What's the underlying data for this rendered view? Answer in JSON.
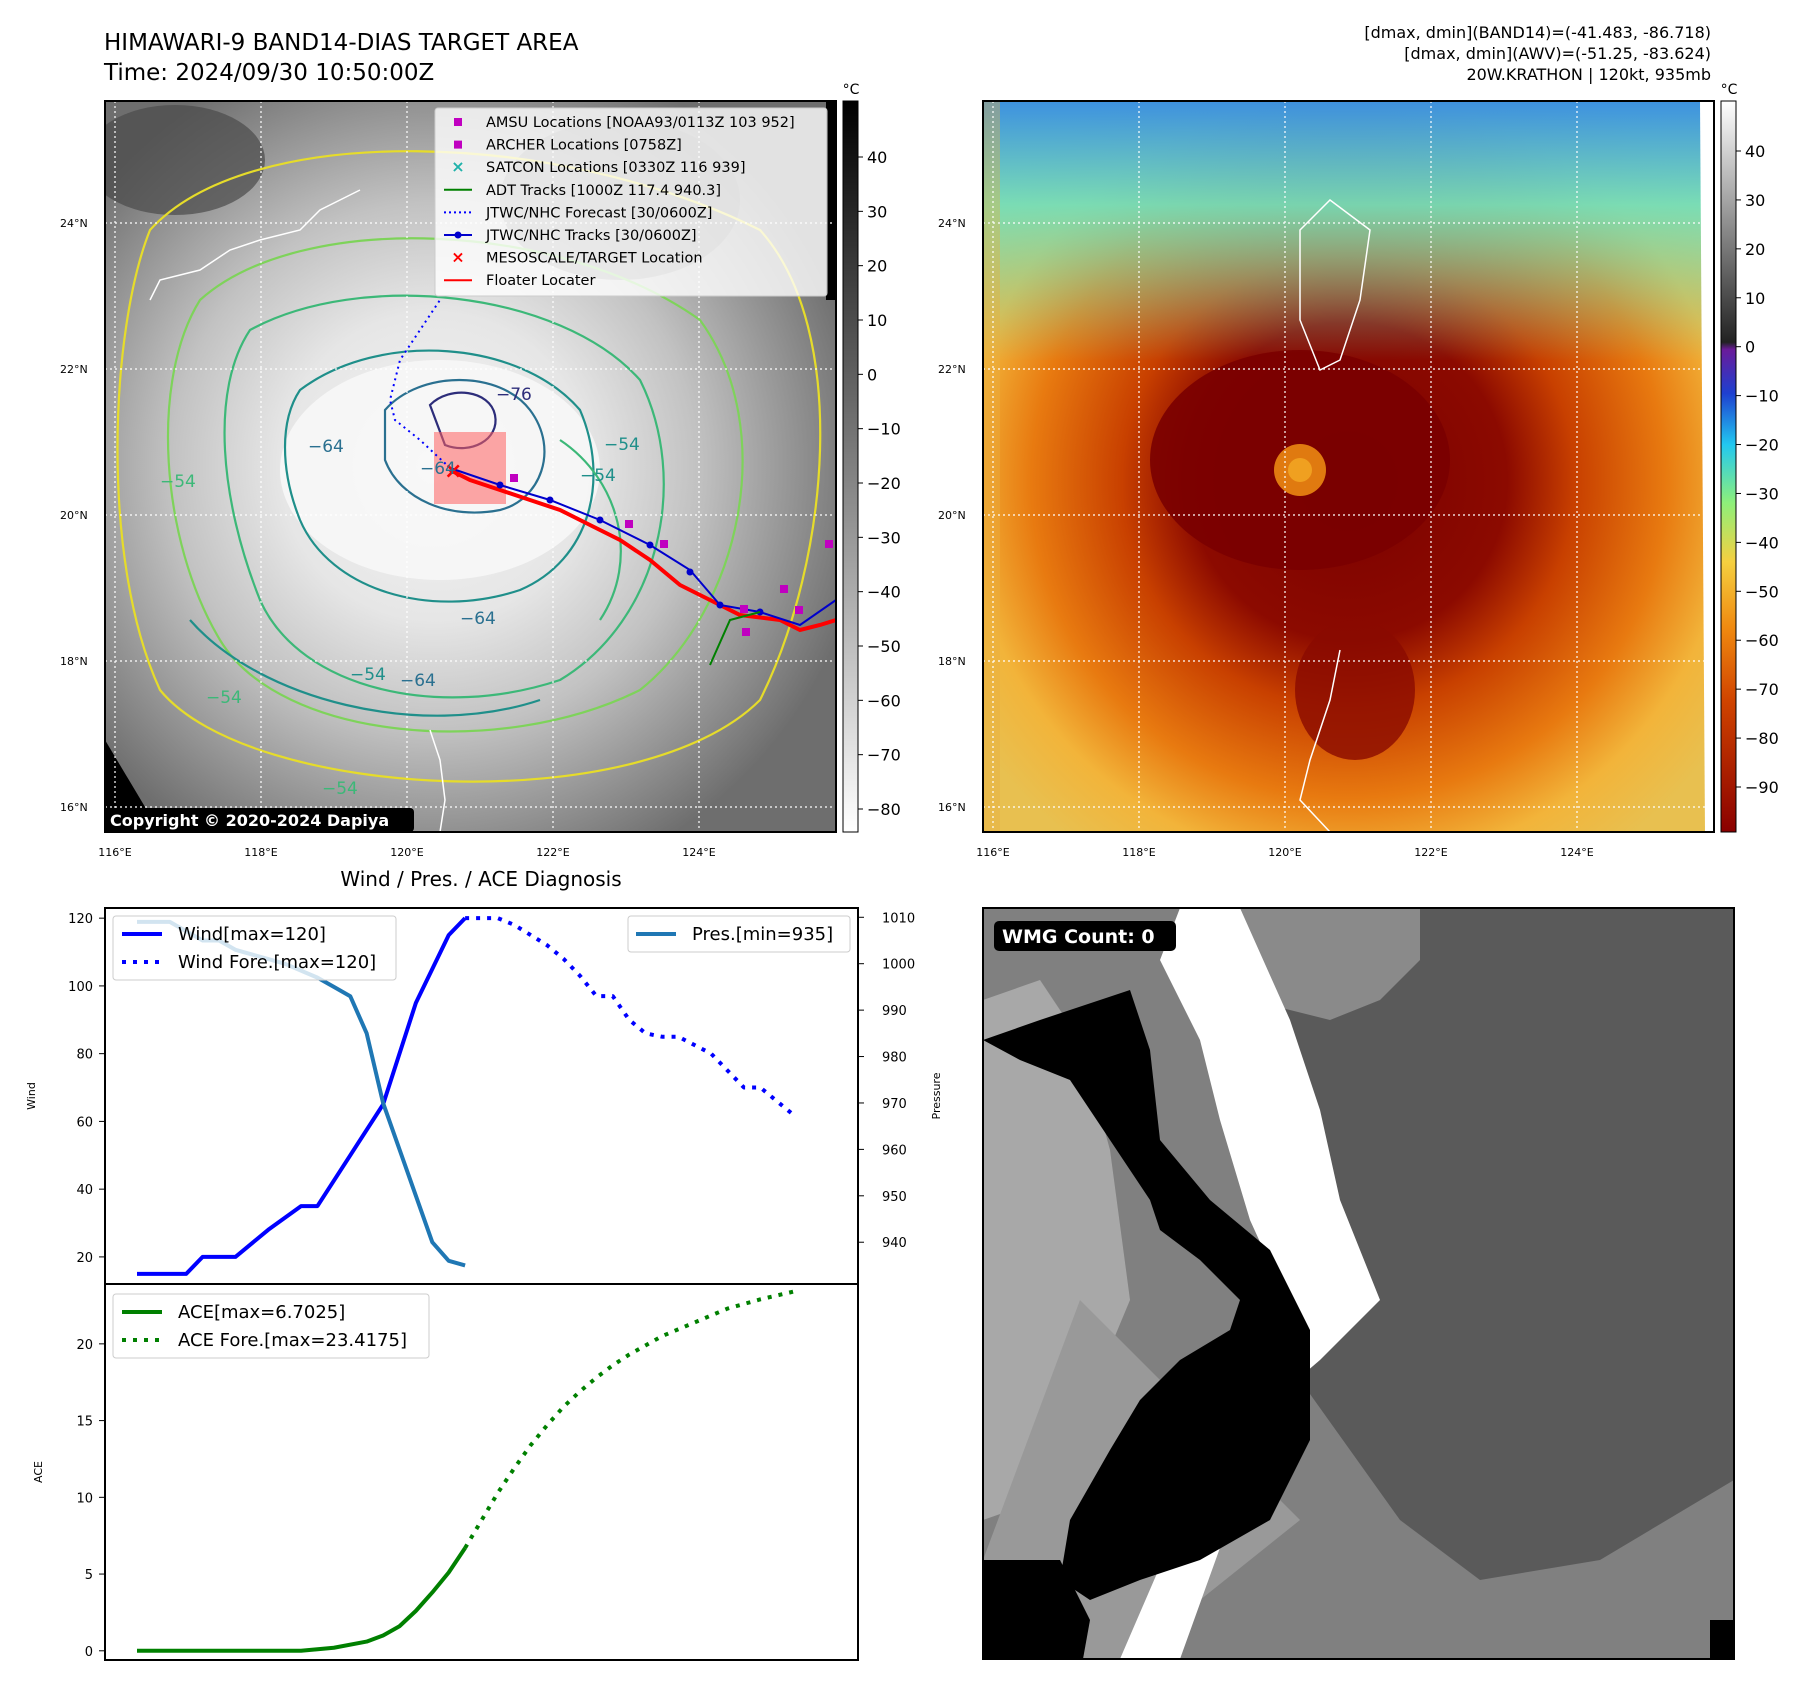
{
  "header": {
    "title": "HIMAWARI-9 BAND14-DIAS TARGET AREA",
    "time": "Time: 2024/09/30 10:50:00Z",
    "stats_band14": "[dmax, dmin](BAND14)=(-41.483, -86.718)",
    "stats_awv": "[dmax, dmin](AWV)=(-51.25, -83.624)",
    "storm": "20W.KRATHON | 120kt, 935mb"
  },
  "maps": {
    "lat_labels": [
      "24°N",
      "22°N",
      "20°N",
      "18°N",
      "16°N"
    ],
    "lon_labels": [
      "116°E",
      "118°E",
      "120°E",
      "122°E",
      "124°E"
    ],
    "copyright": "Copyright © 2020-2024 Dapiya",
    "contour_labels": [
      "−76",
      "−64",
      "−54",
      "−54",
      "−64",
      "−54",
      "−54",
      "−54",
      "−64",
      "−64",
      "−54"
    ],
    "legend": [
      {
        "label": "AMSU Locations [NOAA93/0113Z 103 952]",
        "marker": "square",
        "color": "#c000c0"
      },
      {
        "label": "ARCHER Locations [0758Z]",
        "marker": "square",
        "color": "#c000c0"
      },
      {
        "label": "SATCON Locations [0330Z 116 939]",
        "marker": "x",
        "color": "#20b2aa"
      },
      {
        "label": "ADT Tracks [1000Z 117.4 940.3]",
        "marker": "line",
        "color": "#008000"
      },
      {
        "label": "JTWC/NHC Forecast [30/0600Z]",
        "marker": "dotted",
        "color": "#0000ff"
      },
      {
        "label": "JTWC/NHC Tracks [30/0600Z]",
        "marker": "line-dot",
        "color": "#0000cc"
      },
      {
        "label": "MESOSCALE/TARGET Location",
        "marker": "x",
        "color": "#ff0000"
      },
      {
        "label": "Floater Locater",
        "marker": "line",
        "color": "#ff0000"
      }
    ],
    "gray_colorbar": {
      "unit": "°C",
      "ticks": [
        "40",
        "30",
        "20",
        "10",
        "0",
        "−10",
        "−20",
        "−30",
        "−40",
        "−50",
        "−60",
        "−70",
        "−80"
      ]
    },
    "color_colorbar": {
      "unit": "°C",
      "ticks": [
        "40",
        "30",
        "20",
        "10",
        "0",
        "−10",
        "−20",
        "−30",
        "−40",
        "−50",
        "−60",
        "−70",
        "−80",
        "−90"
      ]
    }
  },
  "wmg": {
    "label": "WMG Count: 0"
  },
  "chart_data": [
    {
      "type": "line",
      "title": "Wind / Pres. / ACE Diagnosis",
      "ylabel": "Wind",
      "y2label": "Pressure",
      "ylim": [
        12,
        123
      ],
      "y2lim": [
        931,
        1012
      ],
      "xlim": [
        0,
        42
      ],
      "y_ticks": [
        20,
        40,
        60,
        80,
        100,
        120
      ],
      "y2_ticks": [
        940,
        950,
        960,
        970,
        980,
        990,
        1000,
        1010
      ],
      "legend_left": [
        "Wind[max=120]",
        "Wind Fore.[max=120]"
      ],
      "legend_right": [
        "Pres.[min=935]"
      ],
      "series": [
        {
          "name": "Wind[max=120]",
          "color": "#0000ff",
          "style": "solid",
          "axis": "left",
          "x": [
            0,
            3,
            4,
            6,
            8,
            10,
            11,
            13,
            15,
            17,
            18,
            19,
            20
          ],
          "y": [
            15,
            15,
            20,
            20,
            28,
            35,
            35,
            50,
            65,
            95,
            105,
            115,
            120
          ]
        },
        {
          "name": "Wind Fore.[max=120]",
          "color": "#0000ff",
          "style": "dotted",
          "axis": "left",
          "x": [
            20,
            22,
            23,
            24,
            25,
            26,
            27,
            28,
            29,
            30,
            31,
            32,
            33,
            35,
            36,
            37,
            38,
            40
          ],
          "y": [
            120,
            120,
            118,
            115,
            112,
            108,
            103,
            97,
            97,
            90,
            86,
            85,
            85,
            80,
            75,
            70,
            70,
            62
          ]
        },
        {
          "name": "Pres.[min=935]",
          "color": "#1f77b4",
          "style": "solid",
          "axis": "right",
          "x": [
            0,
            2,
            3,
            4,
            5,
            6,
            7,
            8,
            9,
            11,
            12,
            13,
            14,
            15,
            16,
            17,
            18,
            19,
            20
          ],
          "y": [
            1009,
            1009,
            1007,
            1005,
            1005,
            1003,
            1002,
            1001,
            1000,
            997,
            995,
            993,
            985,
            970,
            960,
            950,
            940,
            936,
            935
          ]
        }
      ]
    },
    {
      "type": "line",
      "ylabel": "ACE",
      "ylim": [
        -0.6,
        23.9
      ],
      "xlim": [
        0,
        42
      ],
      "y_ticks": [
        0,
        5,
        10,
        15,
        20
      ],
      "legend": [
        "ACE[max=6.7025]",
        "ACE Fore.[max=23.4175]"
      ],
      "series": [
        {
          "name": "ACE[max=6.7025]",
          "color": "#008000",
          "style": "solid",
          "x": [
            0,
            3,
            6,
            8,
            10,
            12,
            14,
            15,
            16,
            17,
            18,
            19,
            20
          ],
          "y": [
            0,
            0,
            0,
            0,
            0,
            0.2,
            0.6,
            1.0,
            1.6,
            2.6,
            3.8,
            5.1,
            6.7
          ]
        },
        {
          "name": "ACE Fore.[max=23.4175]",
          "color": "#008000",
          "style": "dotted",
          "x": [
            20,
            21,
            22,
            23,
            24,
            25,
            26,
            27,
            28,
            29,
            30,
            32,
            34,
            36,
            38,
            40
          ],
          "y": [
            6.7,
            8.5,
            10.3,
            11.9,
            13.4,
            14.7,
            15.9,
            16.9,
            17.8,
            18.6,
            19.3,
            20.5,
            21.4,
            22.3,
            22.9,
            23.4
          ]
        }
      ]
    }
  ]
}
